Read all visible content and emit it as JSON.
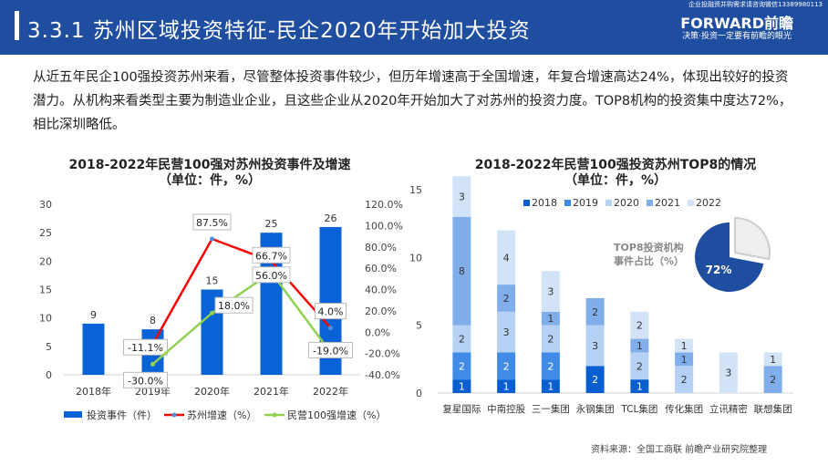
{
  "header": {
    "title": "3.3.1 苏州区域投资特征-民企2020年开始加大投资",
    "contact": "企业投融资并购需求请咨询微信13389980113",
    "logo": "FORWARD前瞻",
    "slogan": "决策·投资一定要有前瞻的眼光"
  },
  "paragraph": "从近五年民企100强投资苏州来看，尽管整体投资事件较少，但历年增速高于全国增速，年复合增速高达24%，体现出较好的投资潜力。从机构来看类型主要为制造业企业，且这些企业从2020年开始加大了对苏州的投资力度。TOP8机构的投资集中度达72%，相比深圳略低。",
  "source": "资料来源：全国工商联 前瞻产业研究院整理",
  "colors": {
    "header": "#1f4ea0",
    "bar": "#0a63d6",
    "suzhou": "#ff0000",
    "national": "#8fd14f"
  },
  "chart_data": [
    {
      "type": "bar+line",
      "title": "2018-2022年民营100强对苏州投资事件及增速",
      "subtitle": "（单位：件，%）",
      "categories": [
        "2018年",
        "2019年",
        "2020年",
        "2021年",
        "2022年"
      ],
      "ylim": [
        0,
        30
      ],
      "yticks": [
        "0",
        "5",
        "10",
        "15",
        "20",
        "25",
        "30"
      ],
      "y2lim": [
        -40,
        120
      ],
      "y2ticks": [
        "-40.0%",
        "-20.0%",
        "0.0%",
        "20.0%",
        "40.0%",
        "60.0%",
        "80.0%",
        "100.0%",
        "120.0%"
      ],
      "series": [
        {
          "name": "投资事件（件）",
          "type": "bar",
          "values": [
            9,
            8,
            15,
            25,
            26
          ],
          "labels": [
            "9",
            "8",
            "15",
            "25",
            "26"
          ]
        },
        {
          "name": "苏州增速（%）",
          "type": "line",
          "values": [
            null,
            -11.1,
            87.5,
            66.7,
            4.0
          ],
          "labels": [
            "",
            "-11.1%",
            "87.5%",
            "66.7%",
            "4.0%"
          ]
        },
        {
          "name": "民营100强增速（%）",
          "type": "line",
          "values": [
            null,
            -30.0,
            18.0,
            56.0,
            -19.0
          ],
          "labels": [
            "",
            "-30.0%",
            "18.0%",
            "56.0%",
            "-19.0%"
          ]
        }
      ],
      "legend": "bottom"
    },
    {
      "type": "stacked-bar",
      "title": "2018-2022年民营100强投资苏州TOP8的情况",
      "subtitle": "（单位：件，%）",
      "categories": [
        "复星国际",
        "中南控股",
        "三一集团",
        "永钢集团",
        "TCL集团",
        "传化集团",
        "立讯精密",
        "联想集团"
      ],
      "ylim": [
        0,
        15
      ],
      "yticks": [
        "0",
        "5",
        "10",
        "15"
      ],
      "series": [
        {
          "name": "2018",
          "color": "#0a5fd0",
          "values": [
            1,
            1,
            1,
            2,
            1,
            0,
            0,
            0
          ]
        },
        {
          "name": "2019",
          "color": "#3f8be6",
          "values": [
            2,
            2,
            2,
            0,
            0,
            0,
            0,
            0
          ]
        },
        {
          "name": "2020",
          "color": "#b5d1f3",
          "values": [
            2,
            3,
            2,
            3,
            2,
            2,
            0,
            0
          ]
        },
        {
          "name": "2021",
          "color": "#80aeea",
          "values": [
            8,
            2,
            1,
            2,
            1,
            1,
            0,
            2
          ]
        },
        {
          "name": "2022",
          "color": "#d3e3f7",
          "values": [
            3,
            4,
            3,
            0,
            2,
            1,
            3,
            1
          ]
        }
      ],
      "legend": "top",
      "pie": {
        "label": "TOP8投资机构事件占比（%）",
        "label_lines": [
          "TOP8投资机构",
          "事件占比（%）"
        ],
        "values": [
          72,
          28
        ],
        "value_label": "72%",
        "colors": [
          "#1f4ea0",
          "#eeeeee"
        ]
      }
    }
  ]
}
